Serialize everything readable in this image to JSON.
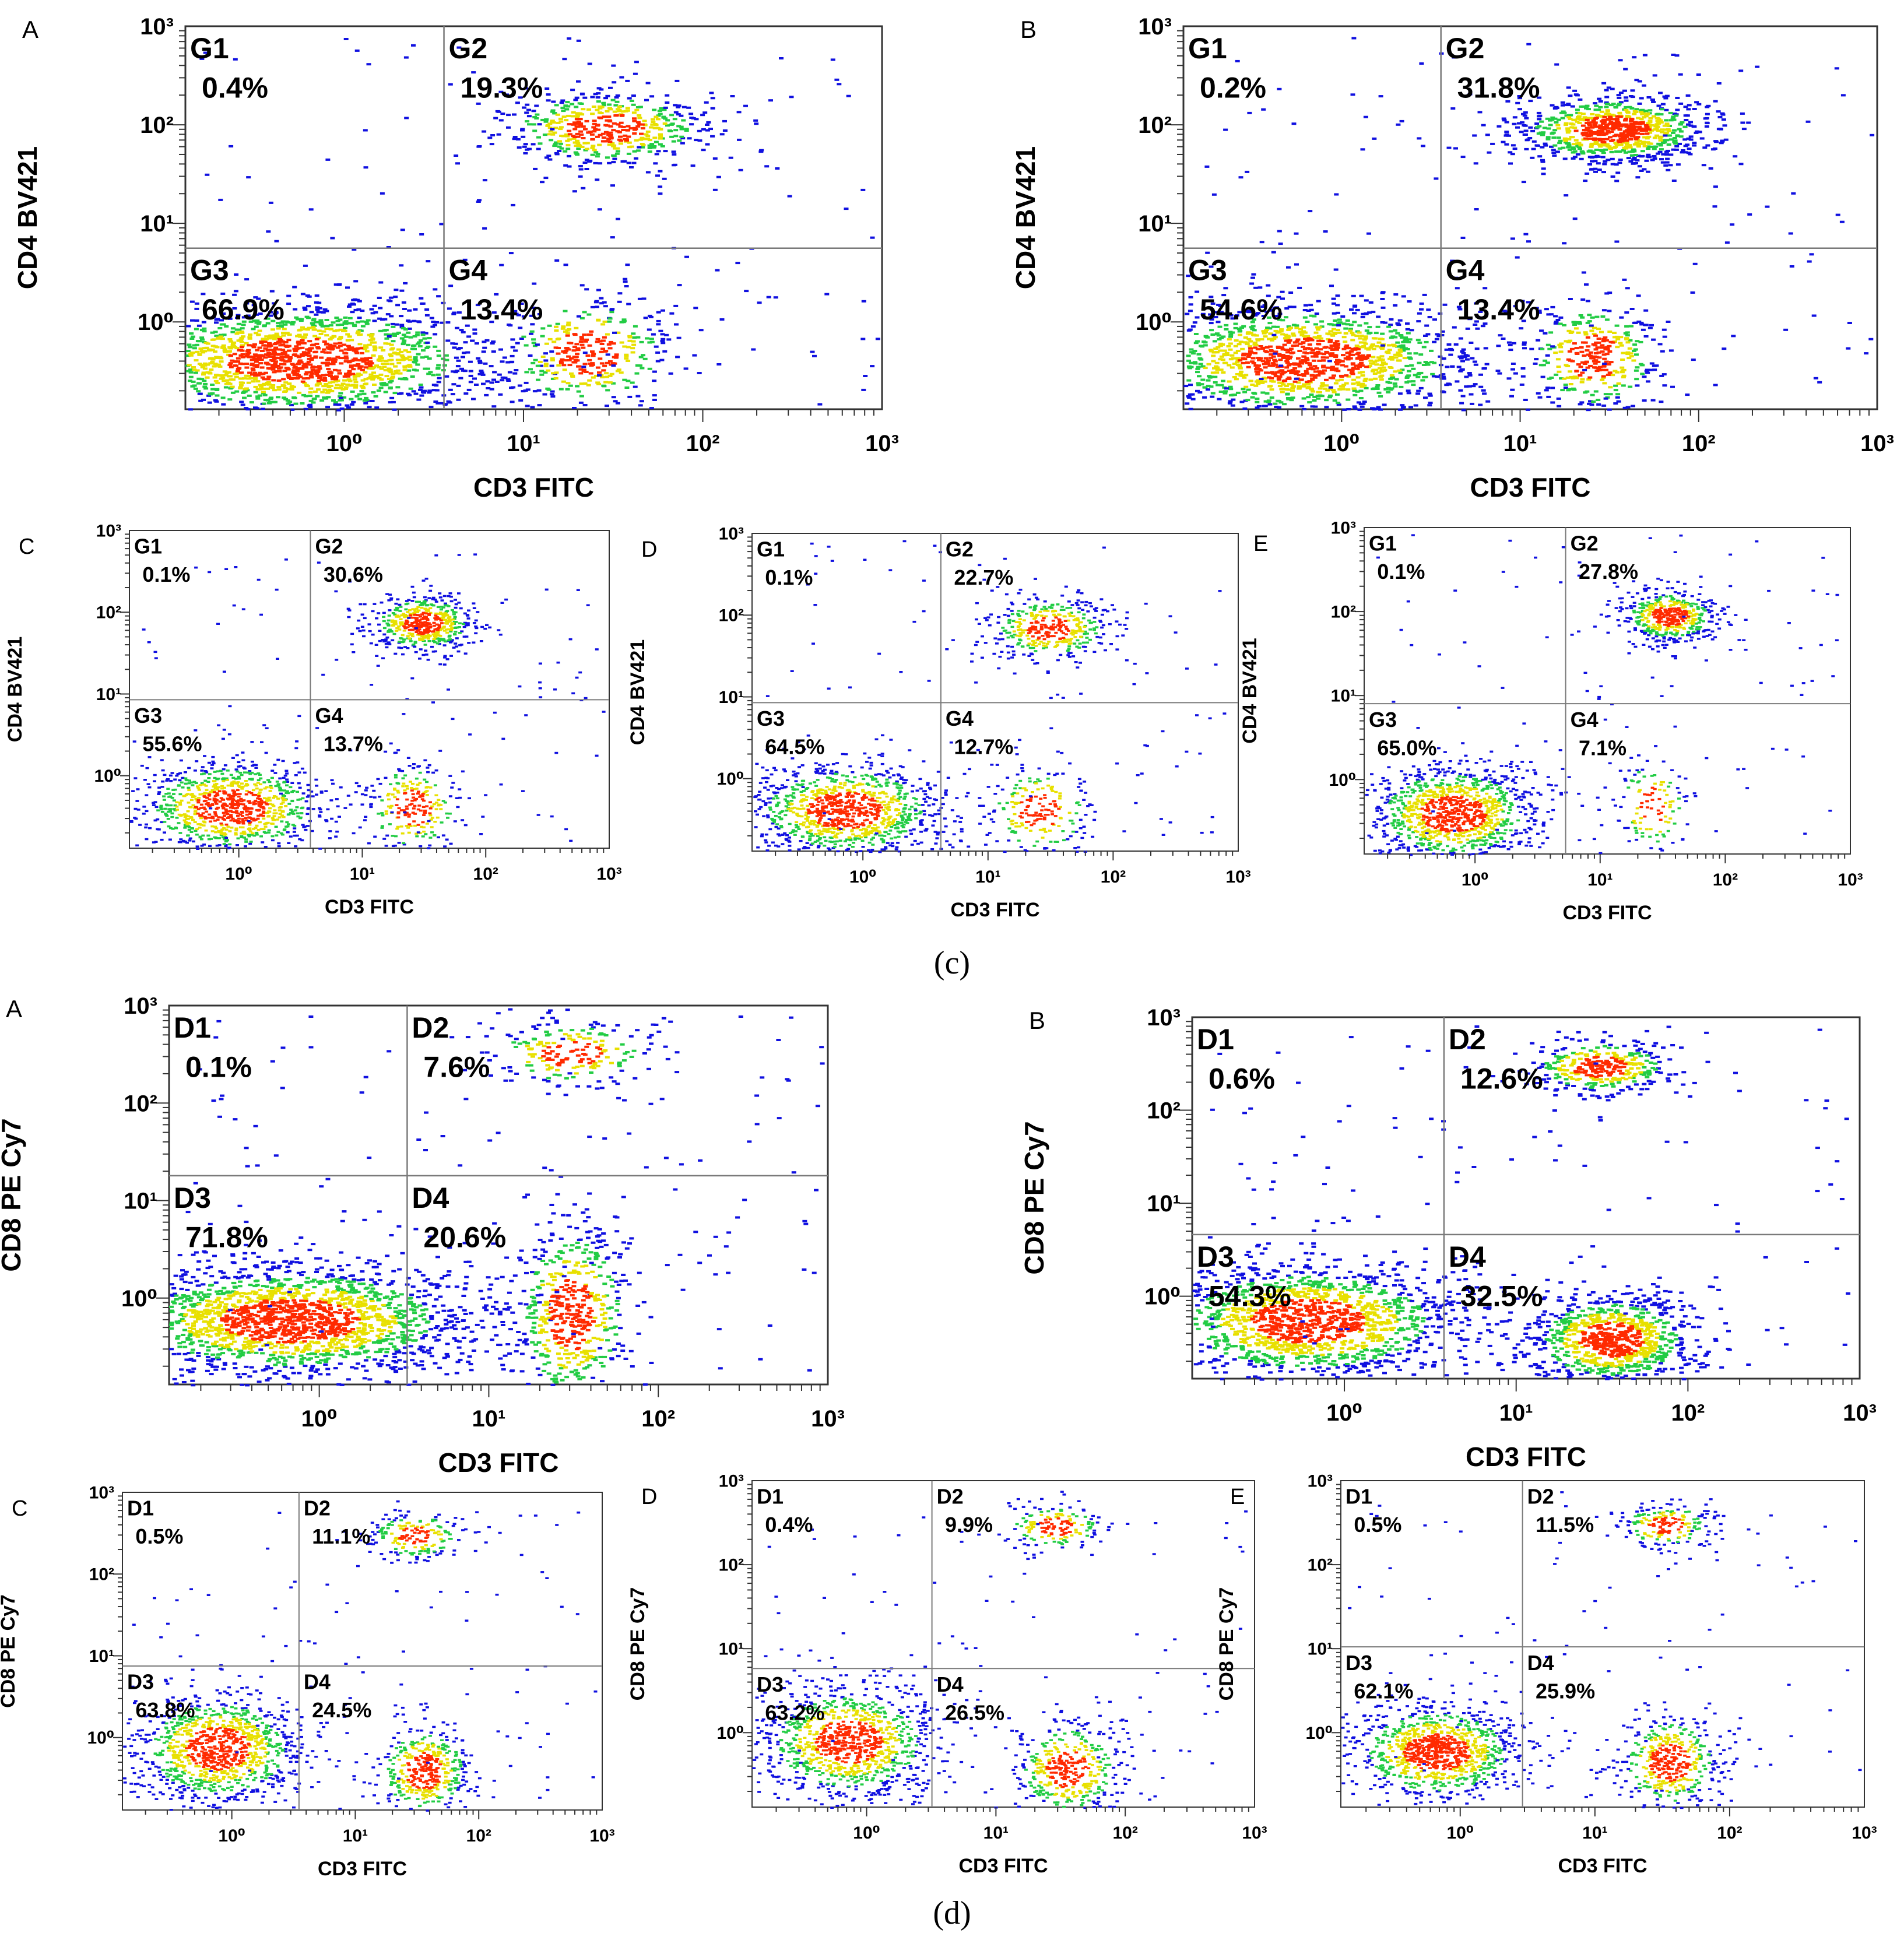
{
  "figure": {
    "captions": [
      {
        "id": "c",
        "text": "(c)"
      },
      {
        "id": "d",
        "text": "(d)"
      }
    ]
  },
  "colors": {
    "density_low": "#1010e0",
    "density_mid_low": "#22cc44",
    "density_mid": "#e8e000",
    "density_high": "#ff2a00",
    "gate_line": "#7a7a7a",
    "axis": "#333333"
  },
  "chart_data": [
    {
      "id": "cA",
      "type": "scatter",
      "panel_label": "A",
      "xlabel": "CD3 FITC",
      "ylabel": "CD4 BV421",
      "x_scale": "log",
      "y_scale": "log",
      "xlim": [
        0.13,
        1000
      ],
      "ylim": [
        0.13,
        1000
      ],
      "x_ticks": [
        1,
        10,
        100,
        1000
      ],
      "y_ticks": [
        1,
        10,
        100,
        1000
      ],
      "x_tick_labels": [
        "10⁰",
        "10¹",
        "10²",
        "10³"
      ],
      "y_tick_labels": [
        "10⁰",
        "10¹",
        "10²",
        "10³"
      ],
      "gate": {
        "x": 3.6,
        "y": 5.6
      },
      "quadrants": [
        {
          "name": "G1",
          "percent": "0.4%"
        },
        {
          "name": "G2",
          "percent": "19.3%"
        },
        {
          "name": "G3",
          "percent": "66.9%"
        },
        {
          "name": "G4",
          "percent": "13.4%"
        }
      ],
      "populations": [
        {
          "x": 0.55,
          "y": 0.42,
          "sx": 0.55,
          "sy": 0.3,
          "weight": 66.9
        },
        {
          "x": 28,
          "y": 95,
          "sx": 0.3,
          "sy": 0.2,
          "weight": 19.3
        },
        {
          "x": 22,
          "y": 0.5,
          "sx": 0.25,
          "sy": 0.3,
          "weight": 13.4
        }
      ]
    },
    {
      "id": "cB",
      "type": "scatter",
      "panel_label": "B",
      "xlabel": "CD3 FITC",
      "ylabel": "CD4 BV421",
      "x_scale": "log",
      "y_scale": "log",
      "xlim": [
        0.13,
        1000
      ],
      "ylim": [
        0.13,
        1000
      ],
      "x_ticks": [
        1,
        10,
        100,
        1000
      ],
      "y_ticks": [
        1,
        10,
        100,
        1000
      ],
      "x_tick_labels": [
        "10⁰",
        "10¹",
        "10²",
        "10³"
      ],
      "y_tick_labels": [
        "10⁰",
        "10¹",
        "10²",
        "10³"
      ],
      "gate": {
        "x": 3.6,
        "y": 5.6
      },
      "quadrants": [
        {
          "name": "G1",
          "percent": "0.2%"
        },
        {
          "name": "G2",
          "percent": "31.8%"
        },
        {
          "name": "G3",
          "percent": "54.6%"
        },
        {
          "name": "G4",
          "percent": "13.4%"
        }
      ],
      "populations": [
        {
          "x": 0.6,
          "y": 0.42,
          "sx": 0.5,
          "sy": 0.3,
          "weight": 54.6
        },
        {
          "x": 32,
          "y": 92,
          "sx": 0.28,
          "sy": 0.18,
          "weight": 31.8
        },
        {
          "x": 25,
          "y": 0.45,
          "sx": 0.2,
          "sy": 0.3,
          "weight": 13.4
        }
      ]
    },
    {
      "id": "cC",
      "type": "scatter",
      "panel_label": "C",
      "xlabel": "CD3 FITC",
      "ylabel": "CD4 BV421",
      "x_scale": "log",
      "y_scale": "log",
      "xlim": [
        0.13,
        1000
      ],
      "ylim": [
        0.13,
        1000
      ],
      "x_ticks": [
        1,
        10,
        100,
        1000
      ],
      "y_ticks": [
        1,
        10,
        100,
        1000
      ],
      "x_tick_labels": [
        "10⁰",
        "10¹",
        "10²",
        "10³"
      ],
      "y_tick_labels": [
        "10⁰",
        "10¹",
        "10²",
        "10³"
      ],
      "gate": {
        "x": 3.8,
        "y": 8.5
      },
      "quadrants": [
        {
          "name": "G1",
          "percent": "0.1%"
        },
        {
          "name": "G2",
          "percent": "30.6%"
        },
        {
          "name": "G3",
          "percent": "55.6%"
        },
        {
          "name": "G4",
          "percent": "13.7%"
        }
      ],
      "populations": [
        {
          "x": 0.85,
          "y": 0.42,
          "sx": 0.4,
          "sy": 0.3,
          "weight": 55.6
        },
        {
          "x": 30,
          "y": 75,
          "sx": 0.22,
          "sy": 0.18,
          "weight": 30.6
        },
        {
          "x": 25,
          "y": 0.42,
          "sx": 0.2,
          "sy": 0.3,
          "weight": 13.7
        }
      ]
    },
    {
      "id": "cD",
      "type": "scatter",
      "panel_label": "D",
      "xlabel": "CD3 FITC",
      "ylabel": "CD4 BV421",
      "x_scale": "log",
      "y_scale": "log",
      "xlim": [
        0.13,
        1000
      ],
      "ylim": [
        0.13,
        1000
      ],
      "x_ticks": [
        1,
        10,
        100,
        1000
      ],
      "y_ticks": [
        1,
        10,
        100,
        1000
      ],
      "x_tick_labels": [
        "10⁰",
        "10¹",
        "10²",
        "10³"
      ],
      "y_tick_labels": [
        "10⁰",
        "10¹",
        "10²",
        "10³"
      ],
      "gate": {
        "x": 4.2,
        "y": 8.5
      },
      "quadrants": [
        {
          "name": "G1",
          "percent": "0.1%"
        },
        {
          "name": "G2",
          "percent": "22.7%"
        },
        {
          "name": "G3",
          "percent": "64.5%"
        },
        {
          "name": "G4",
          "percent": "12.7%"
        }
      ],
      "populations": [
        {
          "x": 0.7,
          "y": 0.42,
          "sx": 0.4,
          "sy": 0.3,
          "weight": 64.5
        },
        {
          "x": 30,
          "y": 70,
          "sx": 0.25,
          "sy": 0.2,
          "weight": 22.7
        },
        {
          "x": 25,
          "y": 0.42,
          "sx": 0.22,
          "sy": 0.3,
          "weight": 12.7
        }
      ]
    },
    {
      "id": "cE",
      "type": "scatter",
      "panel_label": "E",
      "xlabel": "CD3 FITC",
      "ylabel": "CD4 BV421",
      "x_scale": "log",
      "y_scale": "log",
      "xlim": [
        0.13,
        1000
      ],
      "ylim": [
        0.13,
        1000
      ],
      "x_ticks": [
        1,
        10,
        100,
        1000
      ],
      "y_ticks": [
        1,
        10,
        100,
        1000
      ],
      "x_tick_labels": [
        "10⁰",
        "10¹",
        "10²",
        "10³"
      ],
      "y_tick_labels": [
        "10⁰",
        "10¹",
        "10²",
        "10³"
      ],
      "gate": {
        "x": 5.3,
        "y": 8.0
      },
      "quadrants": [
        {
          "name": "G1",
          "percent": "0.1%"
        },
        {
          "name": "G2",
          "percent": "27.8%"
        },
        {
          "name": "G3",
          "percent": "65.0%"
        },
        {
          "name": "G4",
          "percent": "7.1%"
        }
      ],
      "populations": [
        {
          "x": 0.65,
          "y": 0.4,
          "sx": 0.35,
          "sy": 0.3,
          "weight": 65.0
        },
        {
          "x": 35,
          "y": 90,
          "sx": 0.2,
          "sy": 0.16,
          "weight": 27.8
        },
        {
          "x": 25,
          "y": 0.5,
          "sx": 0.15,
          "sy": 0.3,
          "weight": 7.1
        }
      ]
    },
    {
      "id": "dA",
      "type": "scatter",
      "panel_label": "A",
      "xlabel": "CD3 FITC",
      "ylabel": "CD8 PE Cy7",
      "x_scale": "log",
      "y_scale": "log",
      "xlim": [
        0.13,
        1000
      ],
      "ylim": [
        0.13,
        1000
      ],
      "x_ticks": [
        1,
        10,
        100,
        1000
      ],
      "y_ticks": [
        1,
        10,
        100,
        1000
      ],
      "x_tick_labels": [
        "10⁰",
        "10¹",
        "10²",
        "10³"
      ],
      "y_tick_labels": [
        "10⁰",
        "10¹",
        "10²",
        "10³"
      ],
      "gate": {
        "x": 3.3,
        "y": 18
      },
      "quadrants": [
        {
          "name": "D1",
          "percent": "0.1%"
        },
        {
          "name": "D2",
          "percent": "7.6%"
        },
        {
          "name": "D3",
          "percent": "71.8%"
        },
        {
          "name": "D4",
          "percent": "20.6%"
        }
      ],
      "populations": [
        {
          "x": 0.65,
          "y": 0.6,
          "sx": 0.55,
          "sy": 0.3,
          "weight": 71.8
        },
        {
          "x": 30,
          "y": 330,
          "sx": 0.25,
          "sy": 0.18,
          "weight": 7.6
        },
        {
          "x": 30,
          "y": 0.7,
          "sx": 0.18,
          "sy": 0.5,
          "weight": 20.6
        }
      ]
    },
    {
      "id": "dB",
      "type": "scatter",
      "panel_label": "B",
      "xlabel": "CD3 FITC",
      "ylabel": "CD8 PE Cy7",
      "x_scale": "log",
      "y_scale": "log",
      "xlim": [
        0.13,
        1000
      ],
      "ylim": [
        0.13,
        1000
      ],
      "x_ticks": [
        1,
        10,
        100,
        1000
      ],
      "y_ticks": [
        1,
        10,
        100,
        1000
      ],
      "x_tick_labels": [
        "10⁰",
        "10¹",
        "10²",
        "10³"
      ],
      "y_tick_labels": [
        "10⁰",
        "10¹",
        "10²",
        "10³"
      ],
      "gate": {
        "x": 3.8,
        "y": 4.6
      },
      "quadrants": [
        {
          "name": "D1",
          "percent": "0.6%"
        },
        {
          "name": "D2",
          "percent": "12.6%"
        },
        {
          "name": "D3",
          "percent": "54.3%"
        },
        {
          "name": "D4",
          "percent": "32.5%"
        }
      ],
      "populations": [
        {
          "x": 0.6,
          "y": 0.55,
          "sx": 0.45,
          "sy": 0.32,
          "weight": 54.3
        },
        {
          "x": 30,
          "y": 300,
          "sx": 0.22,
          "sy": 0.15,
          "weight": 12.6
        },
        {
          "x": 35,
          "y": 0.35,
          "sx": 0.25,
          "sy": 0.25,
          "weight": 32.5
        }
      ]
    },
    {
      "id": "dC",
      "type": "scatter",
      "panel_label": "C",
      "xlabel": "CD3 FITC",
      "ylabel": "CD8 PE Cy7",
      "x_scale": "log",
      "y_scale": "log",
      "xlim": [
        0.13,
        1000
      ],
      "ylim": [
        0.13,
        1000
      ],
      "x_ticks": [
        1,
        10,
        100,
        1000
      ],
      "y_ticks": [
        1,
        10,
        100,
        1000
      ],
      "x_tick_labels": [
        "10⁰",
        "10¹",
        "10²",
        "10³"
      ],
      "y_tick_labels": [
        "10⁰",
        "10¹",
        "10²",
        "10³"
      ],
      "gate": {
        "x": 3.5,
        "y": 7.5
      },
      "quadrants": [
        {
          "name": "D1",
          "percent": "0.5%"
        },
        {
          "name": "D2",
          "percent": "11.1%"
        },
        {
          "name": "D3",
          "percent": "63.8%"
        },
        {
          "name": "D4",
          "percent": "24.5%"
        }
      ],
      "populations": [
        {
          "x": 0.75,
          "y": 0.75,
          "sx": 0.35,
          "sy": 0.35,
          "weight": 63.8
        },
        {
          "x": 30,
          "y": 300,
          "sx": 0.2,
          "sy": 0.15,
          "weight": 11.1
        },
        {
          "x": 35,
          "y": 0.4,
          "sx": 0.2,
          "sy": 0.3,
          "weight": 24.5
        }
      ]
    },
    {
      "id": "dD",
      "type": "scatter",
      "panel_label": "D",
      "xlabel": "CD3 FITC",
      "ylabel": "CD8 PE Cy7",
      "x_scale": "log",
      "y_scale": "log",
      "xlim": [
        0.13,
        1000
      ],
      "ylim": [
        0.13,
        1000
      ],
      "x_ticks": [
        1,
        10,
        100,
        1000
      ],
      "y_ticks": [
        1,
        10,
        100,
        1000
      ],
      "x_tick_labels": [
        "10⁰",
        "10¹",
        "10²",
        "10³"
      ],
      "y_tick_labels": [
        "10⁰",
        "10¹",
        "10²",
        "10³"
      ],
      "gate": {
        "x": 3.2,
        "y": 5.8
      },
      "quadrants": [
        {
          "name": "D1",
          "percent": "0.4%"
        },
        {
          "name": "D2",
          "percent": "9.9%"
        },
        {
          "name": "D3",
          "percent": "63.2%"
        },
        {
          "name": "D4",
          "percent": "26.5%"
        }
      ],
      "populations": [
        {
          "x": 0.7,
          "y": 0.8,
          "sx": 0.35,
          "sy": 0.35,
          "weight": 63.2
        },
        {
          "x": 28,
          "y": 290,
          "sx": 0.2,
          "sy": 0.14,
          "weight": 9.9
        },
        {
          "x": 35,
          "y": 0.38,
          "sx": 0.22,
          "sy": 0.3,
          "weight": 26.5
        }
      ]
    },
    {
      "id": "dE",
      "type": "scatter",
      "panel_label": "E",
      "xlabel": "CD3 FITC",
      "ylabel": "CD8 PE Cy7",
      "x_scale": "log",
      "y_scale": "log",
      "xlim": [
        0.13,
        1000
      ],
      "ylim": [
        0.13,
        1000
      ],
      "x_ticks": [
        1,
        10,
        100,
        1000
      ],
      "y_ticks": [
        1,
        10,
        100,
        1000
      ],
      "x_tick_labels": [
        "10⁰",
        "10¹",
        "10²",
        "10³"
      ],
      "y_tick_labels": [
        "10⁰",
        "10¹",
        "10²",
        "10³"
      ],
      "gate": {
        "x": 2.9,
        "y": 10.5
      },
      "quadrants": [
        {
          "name": "D1",
          "percent": "0.5%"
        },
        {
          "name": "D2",
          "percent": "11.5%"
        },
        {
          "name": "D3",
          "percent": "62.1%"
        },
        {
          "name": "D4",
          "percent": "25.9%"
        }
      ],
      "populations": [
        {
          "x": 0.65,
          "y": 0.6,
          "sx": 0.33,
          "sy": 0.3,
          "weight": 62.1
        },
        {
          "x": 33,
          "y": 300,
          "sx": 0.18,
          "sy": 0.14,
          "weight": 11.5
        },
        {
          "x": 35,
          "y": 0.45,
          "sx": 0.2,
          "sy": 0.3,
          "weight": 25.9
        }
      ]
    }
  ]
}
